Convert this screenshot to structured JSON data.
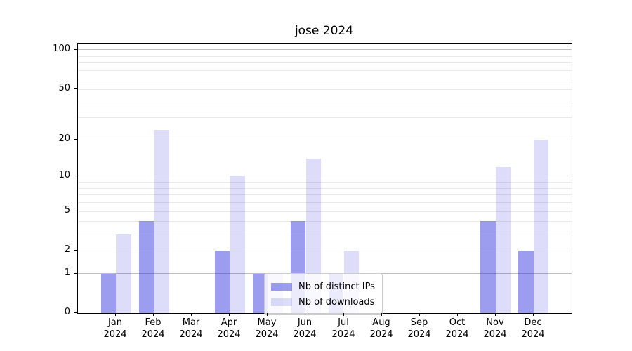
{
  "chart_data": {
    "type": "bar",
    "title": "jose 2024",
    "categories": [
      "Jan 2024",
      "Feb 2024",
      "Mar 2024",
      "Apr 2024",
      "May 2024",
      "Jun 2024",
      "Jul 2024",
      "Aug 2024",
      "Sep 2024",
      "Oct 2024",
      "Nov 2024",
      "Dec 2024"
    ],
    "series": [
      {
        "name": "Nb of distinct IPs",
        "fill": "rgba(51,51,221,0.48)",
        "values": [
          1,
          4,
          0,
          2,
          1,
          4,
          1,
          0,
          0,
          0,
          4,
          2
        ]
      },
      {
        "name": "Nb of downloads",
        "fill": "rgba(51,51,221,0.17)",
        "values": [
          3,
          24,
          0,
          10,
          1,
          14,
          2,
          0,
          0,
          0,
          12,
          20
        ]
      }
    ],
    "y_axis": {
      "scale": "log1p",
      "max": 112.5,
      "tick_labels": [
        100,
        50,
        20,
        10,
        5,
        2,
        1,
        0
      ],
      "major_gridlines": [
        1,
        10,
        100
      ],
      "minor_gridlines": [
        2,
        3,
        4,
        5,
        6,
        7,
        8,
        9,
        20,
        30,
        40,
        50,
        60,
        70,
        80,
        90
      ]
    },
    "x_axis": {
      "year_line": "2024"
    },
    "legend_position": "lower center",
    "grid": true,
    "colors": {
      "bar_base": "#3333dd",
      "major_grid": "#bdbdbd",
      "minor_grid": "#e9e9e9",
      "spine": "#000000",
      "background": "#ffffff"
    }
  }
}
